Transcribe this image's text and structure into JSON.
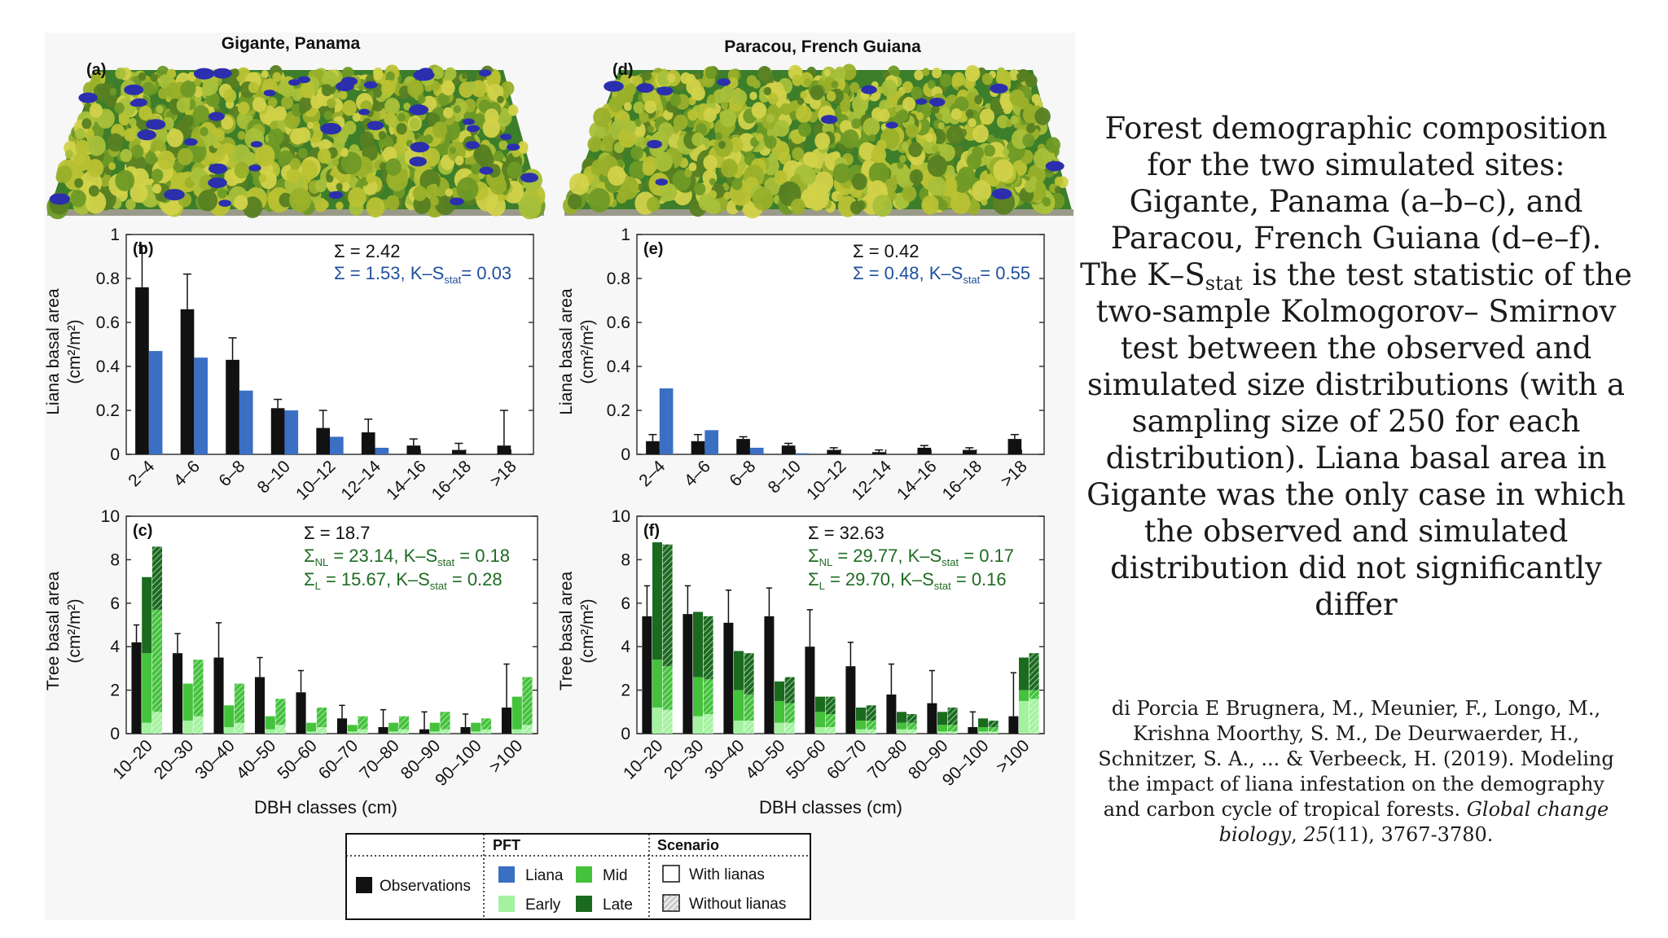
{
  "figure": {
    "panel_a_title": "Gigante, Panama",
    "panel_d_title": "Paracou, French Guiana",
    "panel_a_letter": "(a)",
    "panel_d_letter": "(d)",
    "x_axis_title": "DBH classes (cm)",
    "liana_ylabel_1": "Liana basal area",
    "liana_ylabel_2": "(cm²/m²)",
    "tree_ylabel_1": "Tree basal area",
    "tree_ylabel_2": "(cm²/m²)"
  },
  "colors": {
    "observations": "#111111",
    "liana": "#3a6fc4",
    "early": "#a4f2a0",
    "mid": "#44c23c",
    "late": "#1b6b1f",
    "liana_text": "#1f4f9e",
    "tree_text": "#1e6b22",
    "forest_light": "#c8c838",
    "forest_dark": "#3c7e2a",
    "blue_crown": "#2b2fae"
  },
  "chart_data": [
    {
      "id": "b",
      "label": "(b)",
      "type": "bar",
      "categories": [
        "2–4",
        "4–6",
        "6–8",
        "8–10",
        "10–12",
        "12–14",
        "14–16",
        "16–18",
        ">18"
      ],
      "ylim": [
        0,
        1
      ],
      "yticks": [
        "0",
        "0.2",
        "0.4",
        "0.6",
        "0.8",
        "1"
      ],
      "ytick_values": [
        0,
        0.2,
        0.4,
        0.6,
        0.8,
        1
      ],
      "annotation_1": "Σ = 2.42",
      "annotation_2": "Σ = 1.53, K–S",
      "annotation_2_sub": "stat",
      "annotation_2_end": "= 0.03",
      "observed": [
        0.76,
        0.66,
        0.43,
        0.21,
        0.12,
        0.1,
        0.04,
        0.02,
        0.04
      ],
      "observed_err": [
        0.95,
        0.82,
        0.53,
        0.25,
        0.2,
        0.16,
        0.07,
        0.05,
        0.2
      ],
      "simulated_liana": [
        0.47,
        0.44,
        0.29,
        0.2,
        0.08,
        0.03,
        0.0,
        0.0,
        0.0
      ]
    },
    {
      "id": "e",
      "label": "(e)",
      "type": "bar",
      "categories": [
        "2–4",
        "4–6",
        "6–8",
        "8–10",
        "10–12",
        "12–14",
        "14–16",
        "16–18",
        ">18"
      ],
      "ylim": [
        0,
        1
      ],
      "yticks": [
        "0",
        "0.2",
        "0.4",
        "0.6",
        "0.8",
        "1"
      ],
      "ytick_values": [
        0,
        0.2,
        0.4,
        0.6,
        0.8,
        1
      ],
      "annotation_1": "Σ = 0.42",
      "annotation_2": "Σ = 0.48, K–S",
      "annotation_2_sub": "stat",
      "annotation_2_end": "= 0.55",
      "observed": [
        0.06,
        0.06,
        0.07,
        0.04,
        0.02,
        0.01,
        0.03,
        0.02,
        0.07
      ],
      "observed_err": [
        0.09,
        0.09,
        0.08,
        0.05,
        0.03,
        0.02,
        0.04,
        0.03,
        0.09
      ],
      "simulated_liana": [
        0.3,
        0.11,
        0.03,
        0.005,
        0.0,
        0.0,
        0.0,
        0.0,
        0.0
      ]
    },
    {
      "id": "c",
      "label": "(c)",
      "type": "bar",
      "categories": [
        "10–20",
        "20–30",
        "30–40",
        "40–50",
        "50–60",
        "60–70",
        "70–80",
        "80–90",
        "90–100",
        ">100"
      ],
      "ylim": [
        0,
        10
      ],
      "yticks": [
        "0",
        "2",
        "4",
        "6",
        "8",
        "10"
      ],
      "ytick_values": [
        0,
        2,
        4,
        6,
        8,
        10
      ],
      "annotation_1": "Σ = 18.7",
      "annotation_2": "Σ",
      "annotation_2_sub": "NL",
      "annotation_2_end": "= 23.14, K–S",
      "annotation_2_sub2": "stat",
      "annotation_2_end2": "= 0.18",
      "annotation_3": "Σ",
      "annotation_3_sub": "L",
      "annotation_3_end": "= 15.67, K–S",
      "annotation_3_sub2": "stat",
      "annotation_3_end2": "= 0.28",
      "observed": [
        4.2,
        3.7,
        3.5,
        2.6,
        1.9,
        0.7,
        0.3,
        0.2,
        0.3,
        1.2
      ],
      "observed_err": [
        5.0,
        4.6,
        5.1,
        3.5,
        2.9,
        1.3,
        1.1,
        1.0,
        0.9,
        3.2
      ],
      "with_lianas": [
        {
          "early": 0.5,
          "mid": 3.2,
          "late": 3.5
        },
        {
          "early": 0.6,
          "mid": 1.7,
          "late": 0.0
        },
        {
          "early": 0.3,
          "mid": 1.0,
          "late": 0.0
        },
        {
          "early": 0.2,
          "mid": 0.6,
          "late": 0.0
        },
        {
          "early": 0.1,
          "mid": 0.4,
          "late": 0.0
        },
        {
          "early": 0.1,
          "mid": 0.3,
          "late": 0.0
        },
        {
          "early": 0.1,
          "mid": 0.4,
          "late": 0.0
        },
        {
          "early": 0.1,
          "mid": 0.4,
          "late": 0.0
        },
        {
          "early": 0.1,
          "mid": 0.4,
          "late": 0.0
        },
        {
          "early": 0.2,
          "mid": 1.5,
          "late": 0.0
        }
      ],
      "without_lianas": [
        {
          "early": 1.0,
          "mid": 4.7,
          "late": 2.9
        },
        {
          "early": 0.8,
          "mid": 2.6,
          "late": 0.0
        },
        {
          "early": 0.5,
          "mid": 1.8,
          "late": 0.0
        },
        {
          "early": 0.4,
          "mid": 1.2,
          "late": 0.0
        },
        {
          "early": 0.3,
          "mid": 0.9,
          "late": 0.0
        },
        {
          "early": 0.2,
          "mid": 0.6,
          "late": 0.0
        },
        {
          "early": 0.2,
          "mid": 0.6,
          "late": 0.0
        },
        {
          "early": 0.2,
          "mid": 0.8,
          "late": 0.0
        },
        {
          "early": 0.2,
          "mid": 0.5,
          "late": 0.0
        },
        {
          "early": 0.4,
          "mid": 2.2,
          "late": 0.0
        }
      ]
    },
    {
      "id": "f",
      "label": "(f)",
      "type": "bar",
      "categories": [
        "10–20",
        "20–30",
        "30–40",
        "40–50",
        "50–60",
        "60–70",
        "70–80",
        "80–90",
        "90–100",
        ">100"
      ],
      "ylim": [
        0,
        10
      ],
      "yticks": [
        "0",
        "2",
        "4",
        "6",
        "8",
        "10"
      ],
      "ytick_values": [
        0,
        2,
        4,
        6,
        8,
        10
      ],
      "annotation_1": "Σ = 32.63",
      "annotation_2": "Σ",
      "annotation_2_sub": "NL",
      "annotation_2_end": "= 29.77, K–S",
      "annotation_2_sub2": "stat",
      "annotation_2_end2": "= 0.17",
      "annotation_3": "Σ",
      "annotation_3_sub": "L",
      "annotation_3_end": "= 29.70, K–S",
      "annotation_3_sub2": "stat",
      "annotation_3_end2": "= 0.16",
      "observed": [
        5.4,
        5.5,
        5.1,
        5.4,
        4.0,
        3.1,
        1.8,
        1.4,
        0.3,
        0.8
      ],
      "observed_err": [
        6.8,
        6.8,
        6.6,
        6.7,
        5.7,
        4.2,
        3.2,
        2.9,
        1.0,
        2.8
      ],
      "with_lianas": [
        {
          "early": 1.2,
          "mid": 2.2,
          "late": 5.4
        },
        {
          "early": 0.8,
          "mid": 1.8,
          "late": 3.0
        },
        {
          "early": 0.6,
          "mid": 1.4,
          "late": 1.8
        },
        {
          "early": 0.5,
          "mid": 1.0,
          "late": 0.9
        },
        {
          "early": 0.3,
          "mid": 0.7,
          "late": 0.7
        },
        {
          "early": 0.2,
          "mid": 0.4,
          "late": 0.6
        },
        {
          "early": 0.2,
          "mid": 0.3,
          "late": 0.5
        },
        {
          "early": 0.1,
          "mid": 0.3,
          "late": 0.6
        },
        {
          "early": 0.1,
          "mid": 0.2,
          "late": 0.4
        },
        {
          "early": 1.5,
          "mid": 0.5,
          "late": 1.5
        }
      ],
      "without_lianas": [
        {
          "early": 1.1,
          "mid": 2.0,
          "late": 5.6
        },
        {
          "early": 0.9,
          "mid": 1.6,
          "late": 2.9
        },
        {
          "early": 0.6,
          "mid": 1.2,
          "late": 1.9
        },
        {
          "early": 0.5,
          "mid": 0.9,
          "late": 1.2
        },
        {
          "early": 0.3,
          "mid": 0.6,
          "late": 0.8
        },
        {
          "early": 0.2,
          "mid": 0.4,
          "late": 0.7
        },
        {
          "early": 0.2,
          "mid": 0.3,
          "late": 0.4
        },
        {
          "early": 0.1,
          "mid": 0.3,
          "late": 0.8
        },
        {
          "early": 0.1,
          "mid": 0.2,
          "late": 0.3
        },
        {
          "early": 1.6,
          "mid": 0.4,
          "late": 1.7
        }
      ]
    }
  ],
  "legend": {
    "observations": "Observations",
    "pft_title": "PFT",
    "scenario_title": "Scenario",
    "liana": "Liana",
    "mid": "Mid",
    "early": "Early",
    "late": "Late",
    "with_lianas": "With lianas",
    "without_lianas": "Without lianas"
  },
  "caption": {
    "part1": "Forest demographic composition for the two simulated sites: Gigante, Panama (a–b–c), and Paracou, French Guiana (d–e–f). The K–S",
    "sub": "stat",
    "part2": " is the test statistic of   the two-sample Kolmogorov– Smirnov test between the observed and simulated size distributions (with a sampling size of 250 for each distribution). Liana basal area in Gigante was the only case in which the observed and simulated distribution did not significantly differ"
  },
  "citation": {
    "part1": "di Porcia E Brugnera, M., Meunier, F., Longo, M., Krishna Moorthy, S. M., De Deurwaerder, H., Schnitzer, S. A., ... & Verbeeck, H. (2019). Modeling the impact of liana infestation on the demography and carbon cycle of tropical forests. ",
    "journal": "Global change biology",
    "sep": ", ",
    "volume": "25",
    "part2": "(11), 3767-3780."
  }
}
